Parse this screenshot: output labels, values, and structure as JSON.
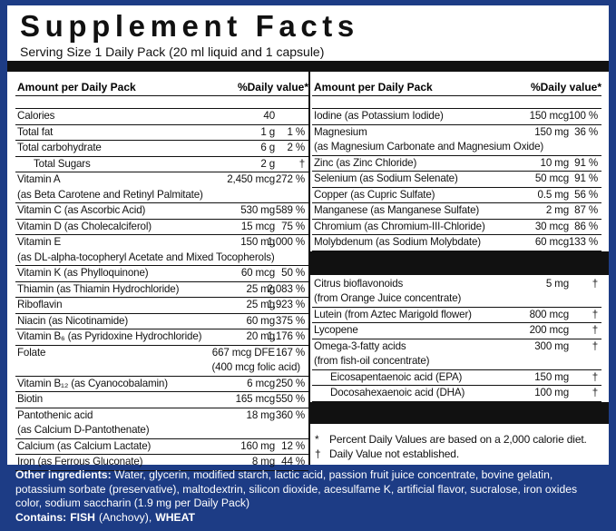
{
  "header": {
    "title": "Supplement Facts",
    "serving": "Serving Size 1 Daily Pack (20 ml liquid and 1 capsule)"
  },
  "left": {
    "heading": "Amount per Daily Pack",
    "dv_heading": "%Daily value*",
    "items": [
      {
        "name": "Calories",
        "amount": "40"
      },
      {
        "name": "Total fat",
        "amount": "1 g",
        "dv": "1 %"
      },
      {
        "name": "Total carbohydrate",
        "amount": "6 g",
        "dv": "2 %"
      },
      {
        "name": "Total Sugars",
        "amount": "2 g",
        "dv": "†",
        "indent": true
      },
      {
        "name": "Vitamin A",
        "amount": "2,450 mcg",
        "dv": "272 %",
        "note": "(as Beta Carotene and Retinyl Palmitate)"
      },
      {
        "name": "Vitamin C (as Ascorbic Acid)",
        "amount": "530 mg",
        "dv": "589 %"
      },
      {
        "name": "Vitamin D (as Cholecalciferol)",
        "amount": "15 mcg",
        "dv": "75 %"
      },
      {
        "name": "Vitamin E",
        "amount": "150 mg",
        "dv": "1,000 %",
        "note": "(as DL-alpha-tocopheryl Acetate and Mixed Tocopherols)"
      },
      {
        "name": "Vitamin K  (as Phylloquinone)",
        "amount": "60 mcg",
        "dv": "50 %"
      },
      {
        "name": "Thiamin  (as Thiamin Hydrochloride)",
        "amount": "25 mg",
        "dv": "2,083 %"
      },
      {
        "name": "Riboflavin",
        "amount": "25 mg",
        "dv": "1,923 %"
      },
      {
        "name": "Niacin   (as Nicotinamide)",
        "amount": "60 mg",
        "dv": "375 %"
      },
      {
        "name": "Vitamin B₆ (as Pyridoxine Hydrochloride)",
        "amount": "20 mg",
        "dv": "1,176 %"
      },
      {
        "name": "Folate",
        "amount": "667 mcg DFE",
        "dv": "167 %",
        "amount_note": "(400 mcg folic acid)"
      },
      {
        "name": "Vitamin B₁₂ (as Cyanocobalamin)",
        "amount": "6 mcg",
        "dv": "250 %"
      },
      {
        "name": "Biotin",
        "amount": "165 mcg",
        "dv": "550 %"
      },
      {
        "name": "Pantothenic acid",
        "amount": "18 mg",
        "dv": "360 %",
        "note": "(as Calcium D-Pantothenate)"
      },
      {
        "name": "Calcium (as Calcium Lactate)",
        "amount": "160 mg",
        "dv": "12 %"
      },
      {
        "name": "Iron (as Ferrous Gluconate)",
        "amount": "8 mg",
        "dv": "44 %"
      }
    ]
  },
  "right": {
    "heading": "Amount per Daily Pack",
    "dv_heading": "%Daily value*",
    "items": [
      {
        "name": "Iodine (as Potassium Iodide)",
        "amount": "150 mcg",
        "dv": "100 %"
      },
      {
        "name": "Magnesium",
        "amount": "150 mg",
        "dv": "36 %",
        "note": "(as Magnesium Carbonate and Magnesium Oxide)"
      },
      {
        "name": "Zinc (as Zinc Chloride)",
        "amount": "10 mg",
        "dv": "91 %"
      },
      {
        "name": "Selenium (as Sodium Selenate)",
        "amount": "50 mcg",
        "dv": "91 %"
      },
      {
        "name": "Copper (as Cupric Sulfate)",
        "amount": "0.5 mg",
        "dv": "56 %"
      },
      {
        "name": "Manganese (as Manganese Sulfate)",
        "amount": "2 mg",
        "dv": "87 %"
      },
      {
        "name": "Chromium (as Chromium-III-Chloride)",
        "amount": "30 mcg",
        "dv": "86 %"
      },
      {
        "name": "Molybdenum (as Sodium Molybdate)",
        "amount": "60 mcg",
        "dv": "133 %"
      }
    ],
    "other_items": [
      {
        "name": "Citrus bioflavonoids",
        "amount": "5 mg",
        "dv": "†",
        "note": "(from Orange Juice concentrate)"
      },
      {
        "name": "Lutein (from Aztec Marigold flower)",
        "amount": "800 mcg",
        "dv": "†"
      },
      {
        "name": "Lycopene",
        "amount": "200 mcg",
        "dv": "†"
      },
      {
        "name": "Omega-3-fatty acids",
        "amount": "300 mg",
        "dv": "†",
        "note": "(from fish-oil concentrate)"
      },
      {
        "name": "Eicosapentaenoic acid (EPA)",
        "amount": "150 mg",
        "dv": "†",
        "indent": true
      },
      {
        "name": "Docosahexaenoic acid (DHA)",
        "amount": "100 mg",
        "dv": "†",
        "indent": true
      }
    ],
    "footnotes": [
      {
        "symbol": "*",
        "text": "Percent Daily Values are based on a 2,000 calorie diet."
      },
      {
        "symbol": "†",
        "text": "Daily Value not established."
      }
    ]
  },
  "footer": {
    "ingredients_label": "Other ingredients:",
    "ingredients": "Water, glycerin, modified starch, lactic acid, passion fruit juice concentrate, bovine gelatin, potassium sorbate (preservative), maltodextrin, silicon dioxide, acesulfame K, artificial flavor, sucralose, iron oxides color, sodium saccharin (1.9 mg per Daily Pack)",
    "contains": [
      {
        "text": "Contains:",
        "bold": true
      },
      {
        "text": "FISH",
        "bold": true
      },
      {
        "text": "(Anchovy),",
        "bold": false
      },
      {
        "text": "WHEAT",
        "bold": true
      }
    ]
  }
}
